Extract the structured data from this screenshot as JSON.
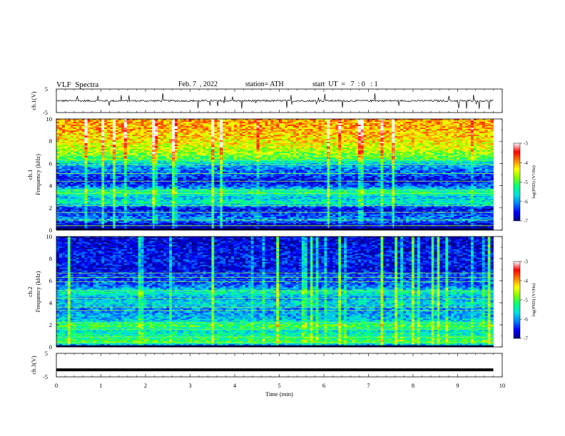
{
  "header": {
    "title": "VLF  Spectra",
    "date": "Feb. 7  , 2022",
    "station": "station= ATH",
    "start": "start  UT  =   7  : 0   : 1"
  },
  "colorbar_ticks": [
    "-3",
    "-4",
    "-5",
    "-6",
    "-7"
  ],
  "colorbar_label": "log(PSD) (V²/Hz)",
  "colorscale": [
    "#000080",
    "#0000ff",
    "#0080ff",
    "#00e0e0",
    "#00ff80",
    "#80ff00",
    "#ffff00",
    "#ff8000",
    "#ff0000",
    "#ffffff"
  ],
  "chart_data": [
    {
      "type": "line",
      "name": "ch1-waveform",
      "ylabel": "ch.1(V)",
      "yticks": [
        "5",
        "-5"
      ],
      "ylim": [
        -5,
        5
      ],
      "xlim": [
        0,
        10
      ],
      "data_extent_min": 9.8,
      "baseline": 0,
      "noise_amplitude": 0.8,
      "color": "#000000"
    },
    {
      "type": "heatmap",
      "name": "ch1-spectrogram",
      "ylabel_channel": "ch.1",
      "ylabel": "Frequency  (kHz)",
      "yticks": [
        "0",
        "2",
        "4",
        "6",
        "8",
        "10"
      ],
      "ylim": [
        0,
        10
      ],
      "xlim": [
        0,
        10
      ],
      "data_extent_min": 9.8,
      "z_range": [
        -7,
        -3
      ],
      "level_profile_log_psd": [
        [
          0.0,
          -7.0
        ],
        [
          0.5,
          -6.8
        ],
        [
          1.0,
          -6.0
        ],
        [
          1.5,
          -6.3
        ],
        [
          2.0,
          -6.6
        ],
        [
          2.5,
          -5.4
        ],
        [
          3.0,
          -5.8
        ],
        [
          3.5,
          -5.2
        ],
        [
          4.0,
          -6.2
        ],
        [
          4.5,
          -6.6
        ],
        [
          5.0,
          -6.3
        ],
        [
          5.5,
          -6.1
        ],
        [
          6.0,
          -5.8
        ],
        [
          6.5,
          -5.0
        ],
        [
          7.0,
          -4.7
        ],
        [
          8.0,
          -4.3
        ],
        [
          9.0,
          -4.1
        ],
        [
          10.0,
          -4.0
        ]
      ]
    },
    {
      "type": "heatmap",
      "name": "ch2-spectrogram",
      "ylabel_channel": "ch.2",
      "ylabel": "Frequency  (kHz)",
      "yticks": [
        "0",
        "2",
        "4",
        "6",
        "8",
        "10"
      ],
      "ylim": [
        0,
        10
      ],
      "xlim": [
        0,
        10
      ],
      "data_extent_min": 9.8,
      "z_range": [
        -7,
        -3
      ],
      "level_profile_log_psd": [
        [
          0.0,
          -6.8
        ],
        [
          0.5,
          -5.0
        ],
        [
          1.0,
          -5.3
        ],
        [
          1.5,
          -5.6
        ],
        [
          2.0,
          -5.0
        ],
        [
          2.5,
          -5.8
        ],
        [
          3.0,
          -5.9
        ],
        [
          3.5,
          -6.1
        ],
        [
          4.0,
          -5.6
        ],
        [
          4.5,
          -6.0
        ],
        [
          5.0,
          -5.4
        ],
        [
          5.5,
          -6.1
        ],
        [
          6.0,
          -6.3
        ],
        [
          6.5,
          -6.3
        ],
        [
          7.0,
          -6.6
        ],
        [
          8.0,
          -6.5
        ],
        [
          9.0,
          -6.6
        ],
        [
          10.0,
          -6.7
        ]
      ]
    },
    {
      "type": "line",
      "name": "ch3-waveform",
      "ylabel": "ch.3(V)",
      "yticks": [
        "5",
        "-5"
      ],
      "ylim": [
        -5,
        5
      ],
      "xlim": [
        0,
        10
      ],
      "data_extent_min": 9.8,
      "baseline": -2,
      "noise_amplitude": 0,
      "color": "#000000",
      "xlabel": "Time  (min)",
      "xticks": [
        "0",
        "1",
        "2",
        "3",
        "4",
        "5",
        "6",
        "7",
        "8",
        "9",
        "10"
      ]
    }
  ]
}
